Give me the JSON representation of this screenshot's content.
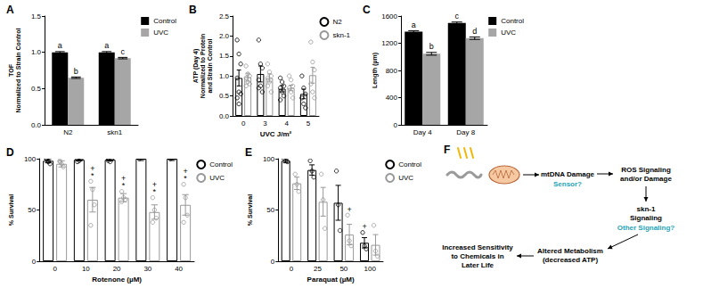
{
  "chart_data": [
    {
      "title": "A",
      "type": "bar",
      "categories": [
        "N2",
        "skn1"
      ],
      "ylabel": "TOF\nNormalized to Strain Control",
      "ylim": [
        0,
        1.5
      ],
      "yticks": [
        {
          "value": 0,
          "label": "0.0"
        },
        0.5,
        {
          "value": 1,
          "label": "1.0"
        },
        1.5
      ],
      "grid": false,
      "legend": "top-right",
      "series": [
        {
          "name": "Control",
          "color": "#000000",
          "values": [
            1.0,
            1.0
          ],
          "errors": [
            0.01,
            0.01
          ],
          "annotations": [
            [
              "a"
            ],
            [
              "a"
            ]
          ]
        },
        {
          "name": "UVC",
          "color": "#a6a6a6",
          "values": [
            0.65,
            0.92
          ],
          "errors": [
            0.01,
            0.01
          ],
          "annotations": [
            [
              "b"
            ],
            [
              "c"
            ]
          ]
        }
      ]
    },
    {
      "title": "B",
      "type": "bar",
      "categories": [
        "0",
        "3",
        "4",
        "5"
      ],
      "xlabel": "UVC J/m²",
      "ylabel": "ATP (Day 4)\nNormalized to Protein\nand Strain Control",
      "ylim": [
        0,
        2.5
      ],
      "yticks": [
        {
          "value": 0,
          "label": "0.0"
        },
        0.5,
        {
          "value": 1,
          "label": "1.0"
        },
        1.5,
        {
          "value": 2,
          "label": "2.0"
        },
        2.5
      ],
      "grid": false,
      "legend": "top-right",
      "series": [
        {
          "name": "N2",
          "color": "#000000",
          "marker": "circle",
          "values": [
            0.95,
            1.05,
            0.68,
            0.55
          ],
          "errors": [
            0.2,
            0.2,
            0.08,
            0.12
          ],
          "points": [
            [
              1.9,
              1.55,
              1.3,
              0.95,
              0.6,
              0.55,
              0.45,
              0.3
            ],
            [
              1.9,
              1.3,
              1.2,
              0.9,
              0.75,
              0.6,
              0.7
            ],
            [
              0.95,
              0.85,
              0.75,
              0.7,
              0.6,
              0.5,
              0.4
            ],
            [
              1.0,
              0.7,
              0.55,
              0.45,
              0.3,
              0.2
            ]
          ]
        },
        {
          "name": "skn-1",
          "color": "#999999",
          "marker": "circle",
          "values": [
            0.97,
            0.95,
            0.7,
            1.02
          ],
          "errors": [
            0.1,
            0.1,
            0.07,
            0.2
          ],
          "points": [
            [
              1.25,
              1.05,
              1.0,
              0.95,
              0.85,
              0.8,
              0.75
            ],
            [
              1.3,
              1.1,
              1.0,
              0.95,
              0.85,
              0.6,
              0.75
            ],
            [
              1.0,
              0.9,
              0.75,
              0.7,
              0.6,
              0.45
            ],
            [
              1.85,
              1.35,
              1.15,
              0.8,
              0.6,
              0.45
            ]
          ]
        }
      ]
    },
    {
      "title": "C",
      "type": "bar",
      "categories": [
        "Day 4",
        "Day 8"
      ],
      "ylabel": "Length (µm)",
      "ylim": [
        0,
        1600
      ],
      "yticks": [
        0,
        400,
        800,
        1200,
        1600
      ],
      "grid": false,
      "legend": "top-right",
      "series": [
        {
          "name": "Control",
          "color": "#000000",
          "values": [
            1370,
            1500
          ],
          "errors": [
            15,
            12
          ],
          "annotations": [
            [
              "a"
            ],
            [
              "c"
            ]
          ]
        },
        {
          "name": "UVC",
          "color": "#a6a6a6",
          "values": [
            1045,
            1275
          ],
          "errors": [
            20,
            18
          ],
          "annotations": [
            [
              "b"
            ],
            [
              "d"
            ]
          ]
        }
      ]
    },
    {
      "title": "D",
      "type": "bar",
      "categories": [
        "0",
        "10",
        "20",
        "30",
        "40"
      ],
      "xlabel": "Rotenone (µM)",
      "ylabel": "% Survival",
      "ylim": [
        0,
        100
      ],
      "yticks": [
        0,
        50,
        100
      ],
      "grid": false,
      "legend": "top-right",
      "series": [
        {
          "name": "Control",
          "color": "#000000",
          "marker": "circle",
          "values": [
            98,
            99,
            99,
            100,
            100
          ],
          "errors": [
            2,
            1,
            1,
            0,
            0
          ],
          "points": [
            [
              100,
              98,
              95,
              100,
              97
            ],
            [
              100,
              98,
              100,
              97
            ],
            [
              100,
              97,
              100,
              98
            ],
            [
              100,
              100,
              100,
              100
            ],
            [
              100,
              100,
              100,
              100
            ]
          ]
        },
        {
          "name": "UVC",
          "color": "#999999",
          "marker": "circle",
          "values": [
            95,
            60,
            62,
            48,
            55
          ],
          "errors": [
            3,
            12,
            4,
            7,
            10
          ],
          "points": [
            [
              98,
              95,
              92,
              97
            ],
            [
              78,
              70,
              55,
              35
            ],
            [
              68,
              62,
              60,
              58
            ],
            [
              62,
              50,
              42,
              38
            ],
            [
              75,
              62,
              45,
              38
            ]
          ],
          "annotations": [
            null,
            [
              "*",
              "+"
            ],
            [
              "*",
              "+"
            ],
            [
              "*",
              "+"
            ],
            [
              "*",
              "+"
            ]
          ]
        }
      ]
    },
    {
      "title": "E",
      "type": "bar",
      "categories": [
        "0",
        "25",
        "50",
        "100"
      ],
      "xlabel": "Paraquat (µM)",
      "ylabel": "% Survival",
      "ylim": [
        0,
        100
      ],
      "yticks": [
        0,
        50,
        100
      ],
      "grid": false,
      "legend": "top-right",
      "series": [
        {
          "name": "Control",
          "color": "#000000",
          "marker": "circle",
          "values": [
            98,
            89,
            57,
            18
          ],
          "errors": [
            2,
            5,
            17,
            5
          ],
          "points": [
            [
              100,
              98,
              97
            ],
            [
              98,
              88,
              82
            ],
            [
              88,
              55,
              30
            ],
            [
              28,
              15,
              12
            ]
          ],
          "annotations": [
            null,
            null,
            null,
            [
              "+"
            ]
          ]
        },
        {
          "name": "UVC",
          "color": "#999999",
          "marker": "circle",
          "values": [
            76,
            58,
            26,
            16
          ],
          "errors": [
            6,
            14,
            10,
            10
          ],
          "points": [
            [
              85,
              75,
              68
            ],
            [
              85,
              60,
              32
            ],
            [
              45,
              20,
              15
            ],
            [
              35,
              10,
              5
            ]
          ],
          "annotations": [
            null,
            null,
            [
              "+"
            ],
            null
          ]
        }
      ]
    }
  ],
  "diagram": {
    "title": "F",
    "steps": [
      {
        "text": [
          "mtDNA Damage"
        ],
        "question": "Sensor?"
      },
      {
        "text": [
          "ROS Signaling",
          "and/or Damage"
        ]
      },
      {
        "text": [
          "skn-1",
          "Signaling"
        ],
        "question": "Other Signaling?"
      },
      {
        "text": [
          "Altered Metabolism",
          "(decreased ATP)"
        ]
      },
      {
        "text": [
          "Increased Sensitivity",
          "to Chemicals in",
          "Later Life"
        ]
      }
    ]
  }
}
